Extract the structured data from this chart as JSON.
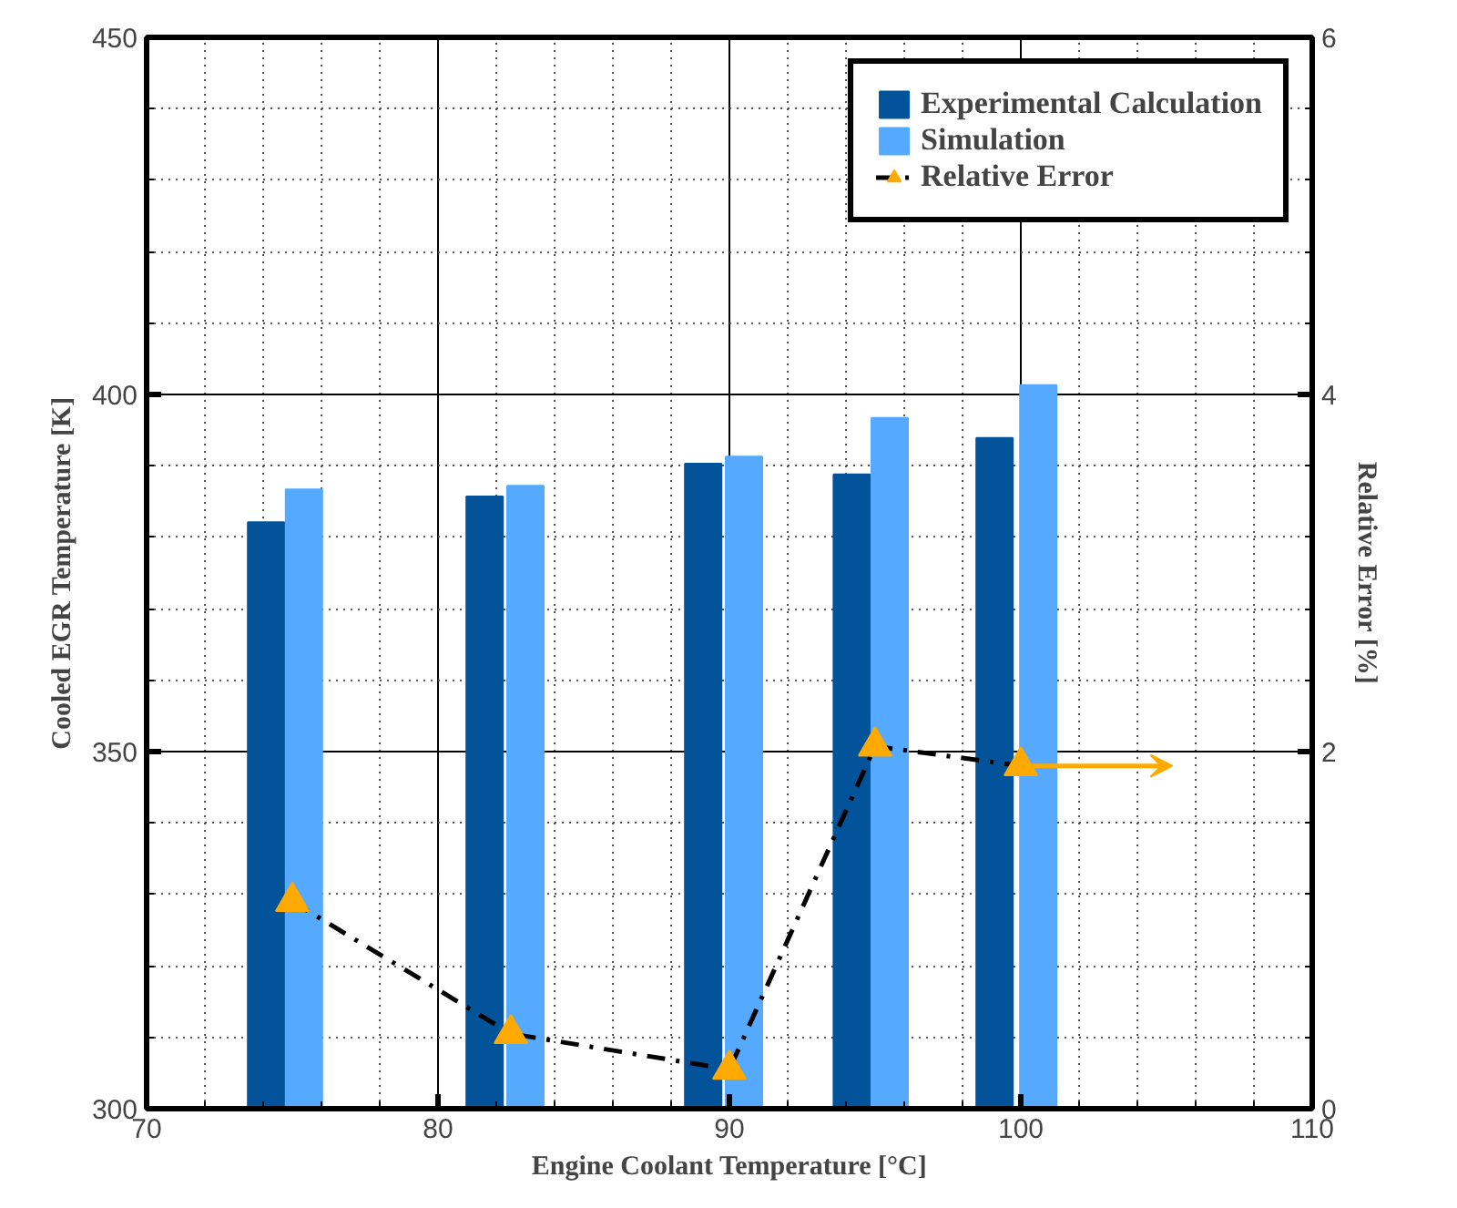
{
  "chart_data": {
    "type": "bar",
    "xlabel": "Engine Coolant Temperature [°C]",
    "ylabel": "Cooled EGR Temperature [K]",
    "y2label": "Relative Error [%]",
    "xlim": [
      70,
      110
    ],
    "xticks": [
      70,
      80,
      90,
      100,
      110
    ],
    "ylim": [
      300,
      450
    ],
    "yticks": [
      300,
      350,
      400,
      450
    ],
    "y2lim": [
      0,
      6
    ],
    "y2ticks": [
      0,
      2,
      4,
      6
    ],
    "grid": true,
    "legend": "top right",
    "series": [
      {
        "name": "Experimental Calculation",
        "color": "#02539a",
        "x": [
          74.1,
          81.6,
          89.1,
          94.2,
          99.1
        ],
        "values": [
          382.1,
          385.7,
          390.3,
          388.8,
          393.9
        ]
      },
      {
        "name": "Simulation",
        "color": "#55aaff",
        "x": [
          75.4,
          83.0,
          90.5,
          95.5,
          100.6
        ],
        "values": [
          386.7,
          387.2,
          391.3,
          396.7,
          401.3
        ]
      },
      {
        "name": "Relative Error",
        "type": "line",
        "axis": "y2",
        "color": "#ffaa00",
        "marker": "triangle",
        "line_style": "dashdot",
        "x": [
          75,
          82.5,
          90,
          95,
          100
        ],
        "values": [
          1.16,
          0.42,
          0.22,
          2.03,
          1.92
        ]
      }
    ]
  }
}
